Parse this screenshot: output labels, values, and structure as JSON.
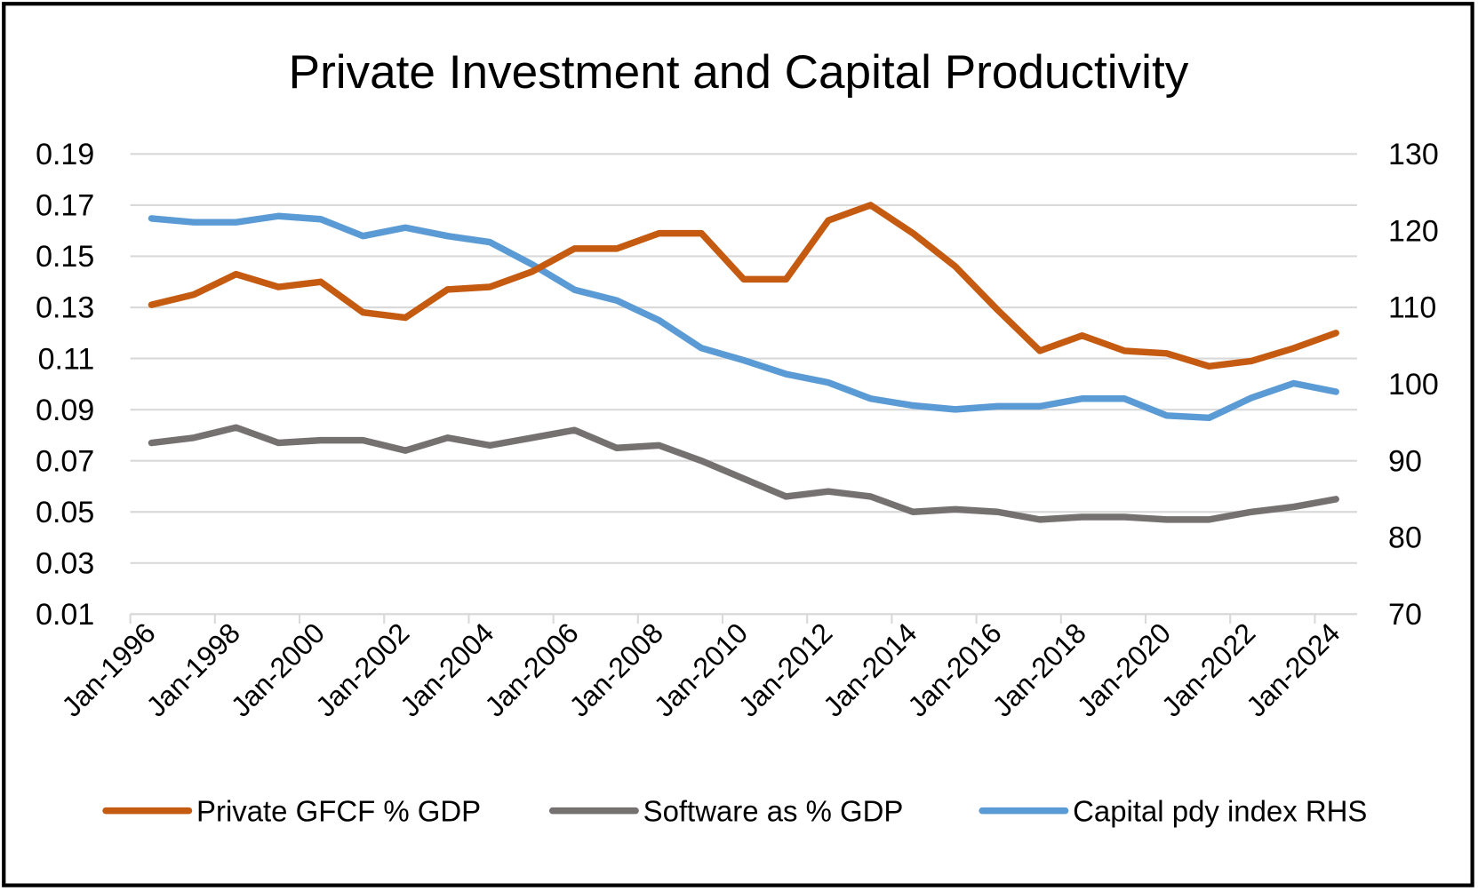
{
  "chart_data": {
    "type": "line",
    "title": "Private Investment and Capital Productivity",
    "categories": [
      "Jan-1996",
      "Jan-1997",
      "Jan-1998",
      "Jan-1999",
      "Jan-2000",
      "Jan-2001",
      "Jan-2002",
      "Jan-2003",
      "Jan-2004",
      "Jan-2005",
      "Jan-2006",
      "Jan-2007",
      "Jan-2008",
      "Jan-2009",
      "Jan-2010",
      "Jan-2011",
      "Jan-2012",
      "Jan-2013",
      "Jan-2014",
      "Jan-2015",
      "Jan-2016",
      "Jan-2017",
      "Jan-2018",
      "Jan-2019",
      "Jan-2020",
      "Jan-2021",
      "Jan-2022",
      "Jan-2023",
      "Jan-2024"
    ],
    "xtick_labels": [
      "Jan-1996",
      "Jan-1998",
      "Jan-2000",
      "Jan-2002",
      "Jan-2004",
      "Jan-2006",
      "Jan-2008",
      "Jan-2010",
      "Jan-2012",
      "Jan-2014",
      "Jan-2016",
      "Jan-2018",
      "Jan-2020",
      "Jan-2022",
      "Jan-2024"
    ],
    "y_left": {
      "ylim": [
        0.01,
        0.19
      ],
      "ticks": [
        "0.19",
        "0.17",
        "0.15",
        "0.13",
        "0.11",
        "0.09",
        "0.07",
        "0.05",
        "0.03",
        "0.01"
      ]
    },
    "y_right": {
      "ylim": [
        70,
        130
      ],
      "ticks": [
        "130",
        "120",
        "110",
        "100",
        "90",
        "80",
        "70"
      ]
    },
    "grid": true,
    "legend_position": "bottom",
    "series": [
      {
        "name": "Private GFCF % GDP",
        "axis": "left",
        "color": "#C55A11",
        "values": [
          0.131,
          0.135,
          0.143,
          0.138,
          0.14,
          0.128,
          0.126,
          0.137,
          0.138,
          0.144,
          0.153,
          0.153,
          0.159,
          0.159,
          0.141,
          0.141,
          0.164,
          0.17,
          0.159,
          0.146,
          0.129,
          0.113,
          0.119,
          0.113,
          0.112,
          0.107,
          0.109,
          0.114,
          0.12
        ]
      },
      {
        "name": "Software as % GDP",
        "axis": "left",
        "color": "#767171",
        "values": [
          0.077,
          0.079,
          0.083,
          0.077,
          0.078,
          0.078,
          0.074,
          0.079,
          0.076,
          0.079,
          0.082,
          0.075,
          0.076,
          0.07,
          0.063,
          0.056,
          0.058,
          0.056,
          0.05,
          0.051,
          0.05,
          0.047,
          0.048,
          0.048,
          0.047,
          0.047,
          0.05,
          0.052,
          0.055
        ]
      },
      {
        "name": "Capital pdy index RHS",
        "axis": "right",
        "color": "#5B9BD5",
        "values": [
          121.6,
          121.1,
          121.1,
          121.9,
          121.5,
          119.3,
          120.4,
          119.3,
          118.5,
          115.6,
          112.3,
          110.9,
          108.3,
          104.7,
          103.1,
          101.3,
          100.2,
          98.1,
          97.2,
          96.7,
          97.1,
          97.1,
          98.1,
          98.1,
          95.9,
          95.6,
          98.2,
          100.1,
          99.0
        ]
      }
    ]
  }
}
